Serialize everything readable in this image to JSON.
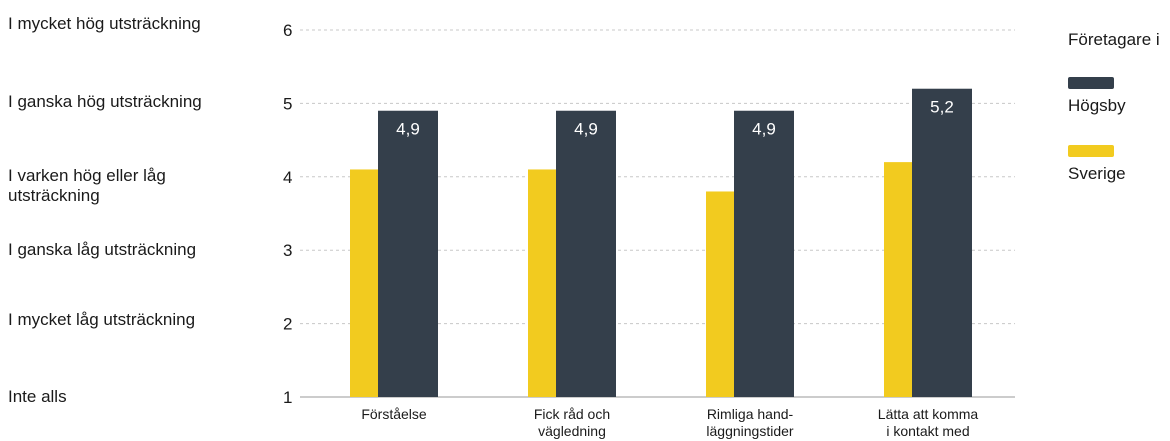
{
  "scale_labels": [
    "I mycket hög utsträckning",
    "I ganska hög utsträckning",
    "I varken hög eller låg\nutsträckning",
    "I ganska låg utsträckning",
    "I mycket låg utsträckning",
    "Inte alls"
  ],
  "legend": {
    "title": "Företagare i",
    "items": [
      {
        "label": "Högsby",
        "color": "#343f4b"
      },
      {
        "label": "Sverige",
        "color": "#f2cb1f"
      }
    ]
  },
  "chart_data": {
    "type": "bar",
    "categories": [
      [
        "Förståelse"
      ],
      [
        "Fick råd och",
        "vägledning"
      ],
      [
        "Rimliga hand-",
        "läggningstider"
      ],
      [
        "Lätta att komma",
        "i kontakt med"
      ]
    ],
    "series": [
      {
        "name": "Sverige",
        "color": "#f2cb1f",
        "values": [
          4.1,
          4.1,
          3.8,
          4.2
        ],
        "show_labels": false
      },
      {
        "name": "Högsby",
        "color": "#343f4b",
        "values": [
          4.9,
          4.9,
          4.9,
          5.2
        ],
        "show_labels": true,
        "display_labels": [
          "4,9",
          "4,9",
          "4,9",
          "5,2"
        ]
      }
    ],
    "yticks": [
      1,
      2,
      3,
      4,
      5,
      6
    ],
    "ylim": [
      1,
      6
    ],
    "grid": true,
    "legend_position": "right"
  }
}
